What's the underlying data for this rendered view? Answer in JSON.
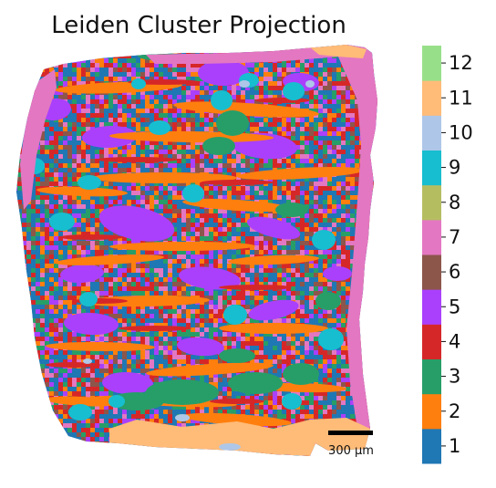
{
  "chart_data": {
    "type": "heatmap",
    "title": "Leiden Cluster Projection",
    "colorbar": {
      "categories": [
        "1",
        "2",
        "3",
        "4",
        "5",
        "6",
        "7",
        "8",
        "9",
        "10",
        "11",
        "12"
      ],
      "colors": [
        "#1f77b4",
        "#ff7f0e",
        "#279e68",
        "#d62728",
        "#aa40fc",
        "#8c564b",
        "#e377c2",
        "#b5bd61",
        "#17becf",
        "#aec7e8",
        "#ffbb78",
        "#98df8a"
      ],
      "placement": "right"
    },
    "scale_bar": {
      "label": "300 μm",
      "length_um": 300
    },
    "grid": false,
    "axes_visible": false
  }
}
